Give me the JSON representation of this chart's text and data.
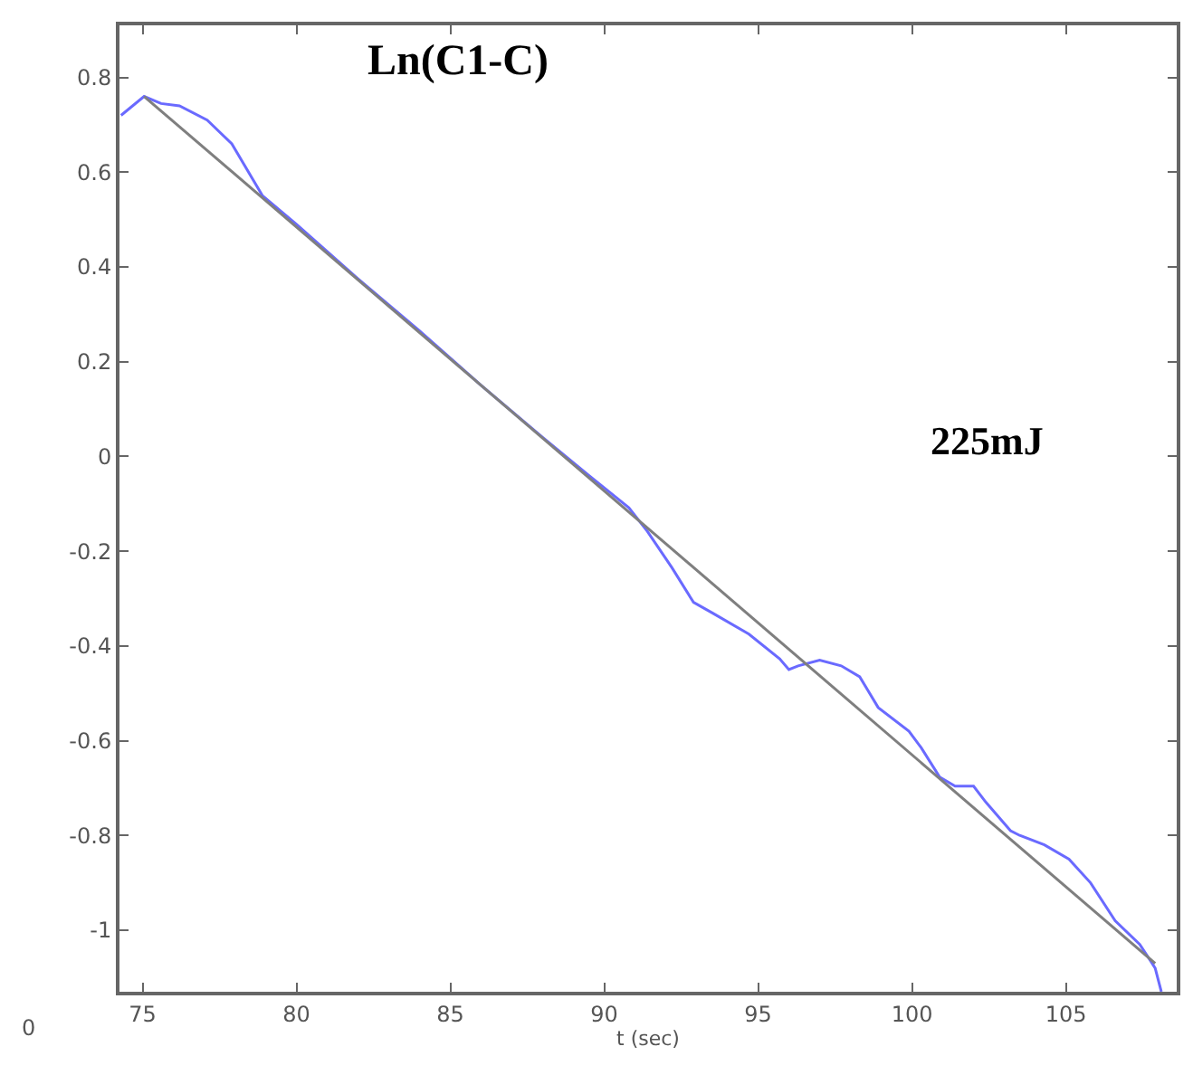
{
  "chart_data": {
    "type": "line",
    "xlabel": "t (sec)",
    "annotations": [
      "Ln(C1-C)",
      "225mJ",
      "0"
    ],
    "xlim": [
      74.25,
      108.6
    ],
    "ylim": [
      -1.13,
      0.91
    ],
    "xticks": [
      75,
      80,
      85,
      90,
      95,
      100,
      105
    ],
    "yticks": [
      0.8,
      0.6,
      0.4,
      0.2,
      0,
      -0.2,
      -0.4,
      -0.6,
      -0.8,
      -1
    ],
    "series": [
      {
        "color": "#6a6aff",
        "x": [
          74.3,
          75.05,
          75.6,
          76.2,
          77.1,
          77.9,
          78.9,
          80,
          82,
          84,
          86,
          88,
          89.5,
          90.8,
          91.4,
          92.2,
          92.9,
          93.5,
          94.7,
          95.7,
          96.0,
          96.3,
          97.0,
          97.7,
          98.3,
          98.9,
          99.9,
          100.3,
          100.9,
          101.4,
          102.0,
          102.4,
          103.2,
          103.5,
          104.3,
          105.1,
          105.8,
          106.6,
          107.4,
          107.9,
          108.1
        ],
        "values": [
          0.72,
          0.76,
          0.745,
          0.74,
          0.71,
          0.66,
          0.55,
          0.49,
          0.375,
          0.265,
          0.15,
          0.04,
          -0.04,
          -0.108,
          -0.158,
          -0.235,
          -0.308,
          -0.33,
          -0.375,
          -0.427,
          -0.45,
          -0.442,
          -0.43,
          -0.442,
          -0.465,
          -0.53,
          -0.58,
          -0.615,
          -0.677,
          -0.696,
          -0.696,
          -0.73,
          -0.79,
          -0.8,
          -0.82,
          -0.85,
          -0.9,
          -0.98,
          -1.03,
          -1.08,
          -1.13
        ]
      },
      {
        "color": "#7f7f7f",
        "x": [
          75.05,
          107.9
        ],
        "values": [
          0.76,
          -1.07
        ]
      }
    ],
    "marker": "none",
    "line_style": "solid"
  }
}
